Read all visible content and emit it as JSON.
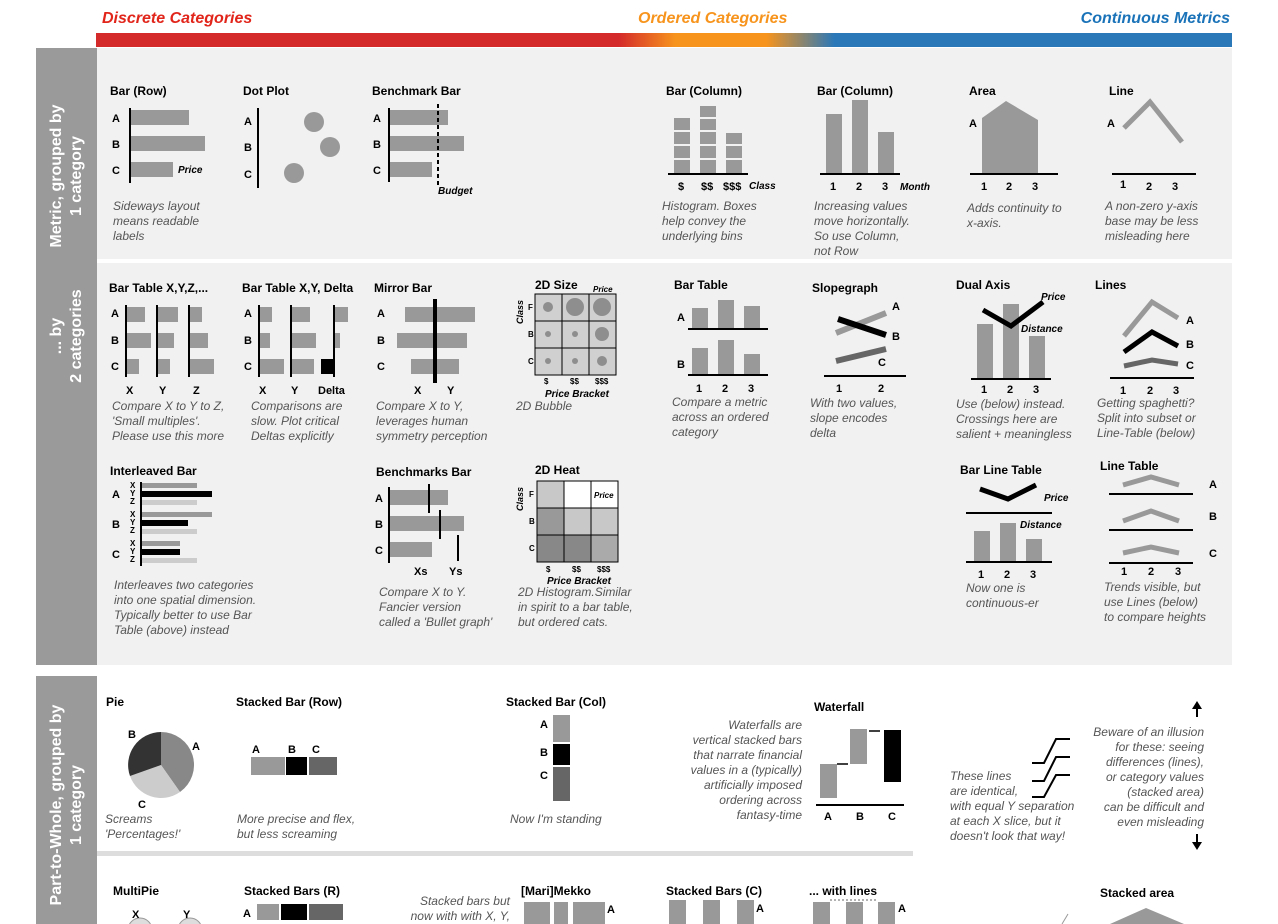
{
  "headers": {
    "discrete": "Discrete Categories",
    "ordered": "Ordered Categories",
    "continuous": "Continuous Metrics"
  },
  "rows": {
    "r1": "Metric, grouped by\n1 category",
    "r2": "... by\n2 categories",
    "r3": "Part-to-Whole, grouped by\n1 category"
  },
  "cells": {
    "bar_row": {
      "title": "Bar (Row)",
      "note": "Sideways layout\nmeans readable\nlabels",
      "labels": [
        "A",
        "B",
        "C",
        "Price"
      ]
    },
    "dot_plot": {
      "title": "Dot Plot",
      "labels": [
        "A",
        "B",
        "C"
      ]
    },
    "benchmark_bar": {
      "title": "Benchmark Bar",
      "labels": [
        "A",
        "B",
        "C",
        "Budget"
      ]
    },
    "bar_col_hist": {
      "title": "Bar (Column)",
      "note": "Histogram. Boxes\nhelp convey the\nunderlying bins",
      "labels": [
        "$",
        "$$",
        "$$$",
        "Class"
      ]
    },
    "bar_col": {
      "title": "Bar (Column)",
      "note": "Increasing values\nmove horizontally.\nSo use Column,\nnot Row",
      "labels": [
        "1",
        "2",
        "3",
        "Month"
      ]
    },
    "area": {
      "title": "Area",
      "note": "Adds continuity to\nx-axis.",
      "labels": [
        "A",
        "1",
        "2",
        "3"
      ]
    },
    "line": {
      "title": "Line",
      "note": "A non-zero y-axis\nbase may be less\nmisleading here",
      "labels": [
        "A",
        "1",
        "2",
        "3"
      ]
    },
    "bar_table_xyz": {
      "title": "Bar Table X,Y,Z,...",
      "note": "Compare X to Y to Z,\n'Small multiples'.\nPlease use this more",
      "labels": [
        "A",
        "B",
        "C",
        "X",
        "Y",
        "Z"
      ]
    },
    "bar_table_delta": {
      "title": "Bar Table X,Y, Delta",
      "note": "Comparisons are\nslow. Plot critical\nDeltas explicitly",
      "labels": [
        "A",
        "B",
        "C",
        "X",
        "Y",
        "Delta"
      ]
    },
    "mirror_bar": {
      "title": "Mirror Bar",
      "note": "Compare X to Y,\nleverages human\nsymmetry perception",
      "labels": [
        "A",
        "B",
        "C",
        "X",
        "Y"
      ]
    },
    "size_2d": {
      "title": "2D Size",
      "note": "2D Bubble",
      "labels": [
        "Price",
        "Class",
        "F",
        "B",
        "C",
        "$",
        "$$",
        "$$$",
        "Price Bracket"
      ]
    },
    "bar_table": {
      "title": "Bar Table",
      "note": "Compare a metric\nacross an ordered\ncategory",
      "labels": [
        "A",
        "B",
        "1",
        "2",
        "3"
      ]
    },
    "slopegraph": {
      "title": "Slopegraph",
      "note": "With two values,\nslope encodes\ndelta",
      "labels": [
        "A",
        "B",
        "C",
        "1",
        "2"
      ]
    },
    "dual_axis": {
      "title": "Dual Axis",
      "note": "Use (below) instead.\nCrossings here are\nsalient + meaningless",
      "labels": [
        "Price",
        "Distance",
        "1",
        "2",
        "3"
      ]
    },
    "lines": {
      "title": "Lines",
      "note": "Getting spaghetti?\nSplit into subset or\nLine-Table (below)",
      "labels": [
        "A",
        "B",
        "C",
        "1",
        "2",
        "3"
      ]
    },
    "interleaved": {
      "title": "Interleaved Bar",
      "note": "Interleaves two categories\ninto one spatial dimension.\nTypically better to use Bar\nTable (above) instead",
      "labels": [
        "A",
        "B",
        "C",
        "X",
        "Y",
        "Z"
      ]
    },
    "benchmarks_bar": {
      "title": "Benchmarks Bar",
      "note": "Compare X to Y.\nFancier version\ncalled a 'Bullet graph'",
      "labels": [
        "A",
        "B",
        "C",
        "Xs",
        "Ys"
      ]
    },
    "heat_2d": {
      "title": "2D Heat",
      "note": "2D Histogram.Similar\nin spirit to a bar table,\nbut ordered cats.",
      "labels": [
        "Class",
        "F",
        "B",
        "C",
        "Price",
        "$",
        "$$",
        "$$$",
        "Price Bracket"
      ]
    },
    "bar_line_table": {
      "title": "Bar Line Table",
      "note": "Now one is\ncontinuous-er",
      "labels": [
        "Price",
        "Distance",
        "1",
        "2",
        "3"
      ]
    },
    "line_table": {
      "title": "Line Table",
      "note": "Trends visible, but\nuse Lines (below)\nto compare heights",
      "labels": [
        "A",
        "B",
        "C",
        "1",
        "2",
        "3"
      ]
    },
    "pie": {
      "title": "Pie",
      "note": "Screams\n'Percentages!'",
      "labels": [
        "A",
        "B",
        "C"
      ]
    },
    "stacked_bar_row": {
      "title": "Stacked Bar (Row)",
      "note": "More precise and flex,\nbut less screaming",
      "labels": [
        "A",
        "B",
        "C"
      ]
    },
    "stacked_bar_col": {
      "title": "Stacked Bar (Col)",
      "note": "Now I'm standing",
      "labels": [
        "A",
        "B",
        "C"
      ]
    },
    "waterfall": {
      "title": "Waterfall",
      "note": "Waterfalls are\nvertical stacked bars\nthat narrate financial\nvalues in a (typically)\nartificially imposed\nordering across\nfantasy-time",
      "labels": [
        "A",
        "B",
        "C"
      ]
    },
    "illusion": {
      "note_left": "These lines\nare identical,\nwith equal Y separation\nat each X slice, but it\ndoesn't look that way!",
      "note_right": "Beware of an illusion\nfor these: seeing\ndifferences (lines),\nor category values\n(stacked area)\ncan be difficult and\neven misleading"
    },
    "multipie": {
      "title": "MultiPie",
      "labels": [
        "X",
        "Y"
      ]
    },
    "stacked_bars_r": {
      "title": "Stacked Bars (R)",
      "labels": [
        "A"
      ]
    },
    "stacked_bars_note": {
      "note": "Stacked bars but\nnow with with X, Y,"
    },
    "marimekko": {
      "title": "[Mari]Mekko",
      "labels": [
        "A"
      ]
    },
    "stacked_bars_c": {
      "title": "Stacked Bars (C)",
      "labels": [
        "A"
      ]
    },
    "with_lines": {
      "title": "... with lines",
      "labels": [
        "A"
      ]
    },
    "stacked_area": {
      "title": "Stacked area"
    }
  }
}
